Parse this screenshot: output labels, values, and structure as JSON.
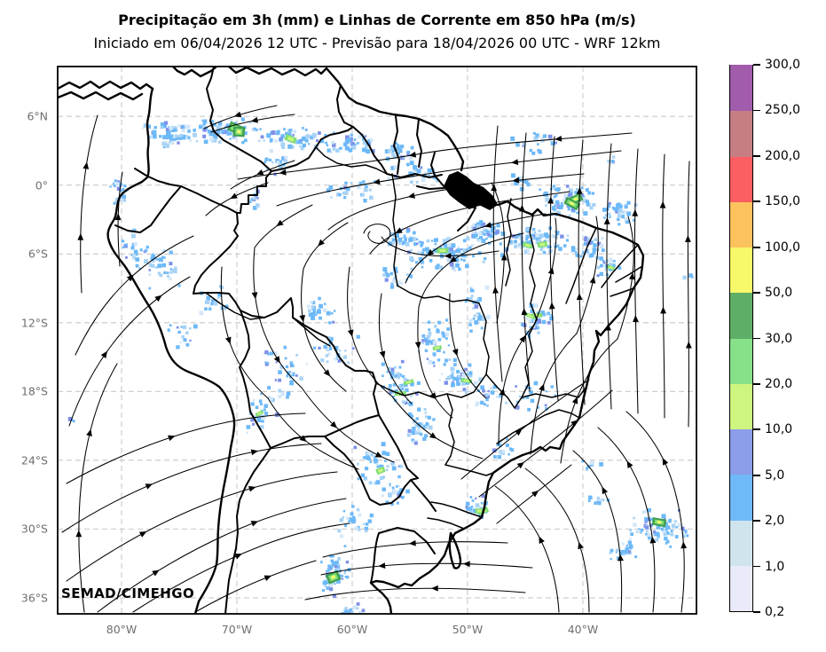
{
  "header": {
    "title": "Precipitação em 3h (mm) e Linhas de Corrente em 850 hPa (m/s)",
    "subtitle": "Iniciado em 06/04/2026 12 UTC - Previsão para 18/04/2026 00 UTC - WRF 12km"
  },
  "map": {
    "watermark": "SEMAD/CIMEHGO",
    "variable": "precipitation-3h-mm-and-850hPa-streamlines"
  },
  "axes": {
    "lon_range": [
      -85.54,
      -30.15
    ],
    "lat_range": [
      10.35,
      -37.4
    ],
    "lat_ticks": [
      {
        "label": "6°N",
        "deg": 6
      },
      {
        "label": "0°",
        "deg": 0
      },
      {
        "label": "6°S",
        "deg": -6
      },
      {
        "label": "12°S",
        "deg": -12
      },
      {
        "label": "18°S",
        "deg": -18
      },
      {
        "label": "24°S",
        "deg": -24
      },
      {
        "label": "30°S",
        "deg": -30
      },
      {
        "label": "36°S",
        "deg": -36
      }
    ],
    "lon_ticks": [
      {
        "label": "80°W",
        "deg": -80
      },
      {
        "label": "70°W",
        "deg": -70
      },
      {
        "label": "60°W",
        "deg": -60
      },
      {
        "label": "50°W",
        "deg": -50
      },
      {
        "label": "40°W",
        "deg": -40
      }
    ],
    "grid_color": "#c9c9c9"
  },
  "colorbar": {
    "levels_mm": [
      0.2,
      1.0,
      2.0,
      5.0,
      10.0,
      20.0,
      30.0,
      50.0,
      100.0,
      150.0,
      200.0,
      250.0,
      300.0
    ],
    "unit_labels_bottom_to_top": [
      "0,2",
      "1,0",
      "2,0",
      "5,0",
      "10,0",
      "20,0",
      "30,0",
      "50,0",
      "100,0",
      "150,0",
      "200,0",
      "250,0",
      "300,0"
    ],
    "colors_bottom_to_top": [
      "#e9eafa",
      "#d0e4ee",
      "#6fb9f9",
      "#8c9de9",
      "#cdf580",
      "#86e188",
      "#5fae67",
      "#f8f96a",
      "#fcc25e",
      "#fc5e62",
      "#c67e84",
      "#a15cab"
    ]
  },
  "precipitation": {
    "palette": {
      "blue": "#6db9f8",
      "light": "#a8d3f6",
      "pale": "#d2e7f9",
      "deep": "#7e91e8",
      "green": "#7edd74",
      "lime": "#c9f67e",
      "dark_green": "#3f9e4f",
      "yellow": "#f4fa6b"
    },
    "cluster_fields": [
      "cx_px",
      "cy_px",
      "rx_px",
      "ry_px",
      "n_dots",
      "has_green_core",
      "strong_core"
    ],
    "clusters": [
      [
        195,
        152,
        45,
        16,
        70,
        0,
        0
      ],
      [
        258,
        150,
        40,
        16,
        70,
        1,
        1
      ],
      [
        330,
        158,
        40,
        16,
        60,
        1,
        0
      ],
      [
        395,
        162,
        35,
        14,
        45,
        0,
        0
      ],
      [
        447,
        172,
        22,
        12,
        28,
        0,
        0
      ],
      [
        470,
        195,
        35,
        14,
        28,
        0,
        0
      ],
      [
        600,
        162,
        30,
        15,
        20,
        0,
        0
      ],
      [
        585,
        205,
        15,
        10,
        12,
        0,
        0
      ],
      [
        640,
        225,
        40,
        20,
        80,
        1,
        1
      ],
      [
        700,
        240,
        26,
        16,
        40,
        0,
        0
      ],
      [
        690,
        182,
        10,
        6,
        5,
        0,
        0
      ],
      [
        775,
        312,
        8,
        5,
        4,
        0,
        0
      ],
      [
        395,
        215,
        30,
        16,
        25,
        0,
        0
      ],
      [
        310,
        185,
        20,
        12,
        20,
        0,
        0
      ],
      [
        135,
        215,
        15,
        22,
        18,
        0,
        0
      ],
      [
        150,
        275,
        18,
        20,
        20,
        0,
        0
      ],
      [
        180,
        300,
        30,
        28,
        40,
        0,
        0
      ],
      [
        240,
        340,
        22,
        22,
        22,
        0,
        0
      ],
      [
        205,
        375,
        18,
        18,
        18,
        0,
        0
      ],
      [
        287,
        225,
        10,
        18,
        14,
        0,
        0
      ],
      [
        455,
        268,
        22,
        12,
        30,
        0,
        0
      ],
      [
        505,
        285,
        48,
        22,
        95,
        1,
        0
      ],
      [
        545,
        262,
        25,
        14,
        40,
        0,
        0
      ],
      [
        445,
        312,
        22,
        14,
        25,
        0,
        0
      ],
      [
        490,
        385,
        22,
        30,
        45,
        1,
        0
      ],
      [
        540,
        350,
        20,
        30,
        30,
        0,
        0
      ],
      [
        600,
        272,
        45,
        18,
        80,
        1,
        0
      ],
      [
        660,
        280,
        22,
        16,
        35,
        0,
        0
      ],
      [
        688,
        300,
        16,
        12,
        22,
        1,
        0
      ],
      [
        605,
        362,
        28,
        22,
        35,
        1,
        0
      ],
      [
        600,
        450,
        30,
        20,
        20,
        0,
        0
      ],
      [
        355,
        350,
        25,
        18,
        25,
        0,
        0
      ],
      [
        380,
        395,
        28,
        22,
        25,
        0,
        0
      ],
      [
        320,
        420,
        28,
        35,
        40,
        0,
        0
      ],
      [
        295,
        470,
        20,
        25,
        30,
        1,
        0
      ],
      [
        455,
        435,
        25,
        30,
        45,
        1,
        0
      ],
      [
        470,
        480,
        22,
        22,
        35,
        0,
        0
      ],
      [
        520,
        425,
        25,
        22,
        40,
        1,
        0
      ],
      [
        550,
        445,
        18,
        18,
        22,
        0,
        0
      ],
      [
        425,
        525,
        28,
        26,
        45,
        1,
        0
      ],
      [
        445,
        555,
        18,
        14,
        20,
        0,
        0
      ],
      [
        400,
        585,
        22,
        25,
        30,
        0,
        0
      ],
      [
        378,
        645,
        20,
        32,
        55,
        1,
        1
      ],
      [
        395,
        688,
        18,
        8,
        15,
        0,
        0
      ],
      [
        540,
        572,
        16,
        14,
        22,
        1,
        0
      ],
      [
        565,
        505,
        18,
        12,
        18,
        0,
        0
      ],
      [
        665,
        525,
        15,
        9,
        10,
        0,
        0
      ],
      [
        675,
        565,
        12,
        10,
        10,
        0,
        0
      ],
      [
        742,
        595,
        35,
        22,
        75,
        1,
        1
      ],
      [
        700,
        622,
        20,
        12,
        18,
        0,
        0
      ],
      [
        82,
        472,
        6,
        5,
        3,
        0,
        0
      ]
    ]
  }
}
